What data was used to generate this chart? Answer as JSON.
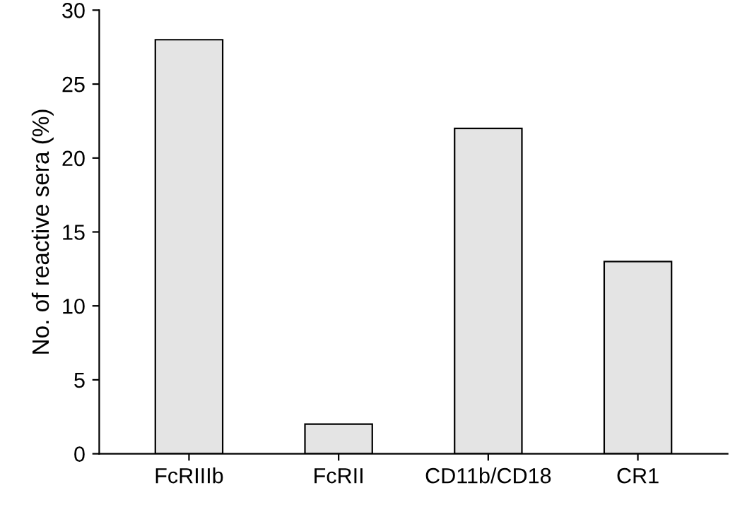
{
  "chart_data": {
    "type": "bar",
    "ylabel": "No. of reactive sera (%)",
    "categories": [
      "FcRIIIb",
      "FcRII",
      "CD11b/CD18",
      "CR1"
    ],
    "values": [
      28,
      2,
      22,
      13
    ],
    "color": "#e4e4e4",
    "ylim": [
      0,
      30
    ],
    "yticks": [
      0,
      5,
      10,
      15,
      20,
      25,
      30
    ],
    "grid": false,
    "legend": false
  }
}
